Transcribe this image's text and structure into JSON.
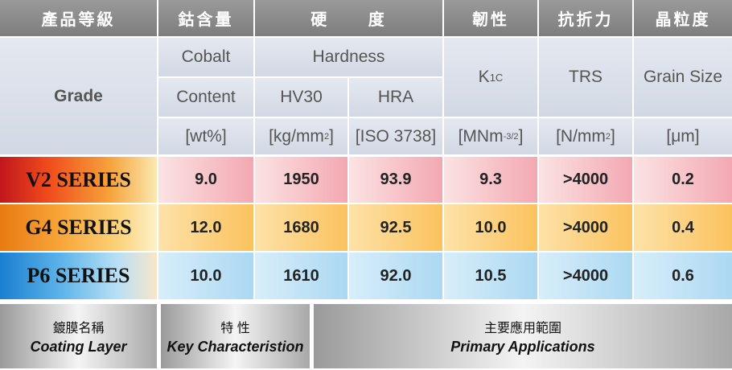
{
  "header": [
    "產品等級",
    "鈷含量",
    "硬 度",
    "韌性",
    "抗折力",
    "晶粒度"
  ],
  "subheader": {
    "grade": "Grade",
    "cobalt": "Cobalt",
    "content": "Content",
    "hardness": "Hardness",
    "hv30": "HV30",
    "hra": "HRA",
    "k1c": {
      "base": "K",
      "small": "1C"
    },
    "trs": "TRS",
    "grain_size": "Grain Size"
  },
  "units": [
    {
      "text": "[wt%]"
    },
    {
      "text": "[kg/mm",
      "sup": "2",
      "close": "]"
    },
    {
      "text": "[ISO 3738]"
    },
    {
      "text": "[MNm",
      "sup": "-3/2",
      "close": "]"
    },
    {
      "text": "[N/mm",
      "sup": "2",
      "close": "]"
    },
    {
      "text": "[μm]"
    }
  ],
  "rows": [
    {
      "series": "V2 SERIES",
      "values": [
        "9.0",
        "1950",
        "93.9",
        "9.3",
        ">4000",
        "0.2"
      ]
    },
    {
      "series": "G4 SERIES",
      "values": [
        "12.0",
        "1680",
        "92.5",
        "10.0",
        ">4000",
        "0.4"
      ]
    },
    {
      "series": "P6 SERIES",
      "values": [
        "10.0",
        "1610",
        "92.0",
        "10.5",
        ">4000",
        "0.6"
      ]
    }
  ],
  "footer": [
    {
      "zh": "鍍膜名稱",
      "en": "Coating Layer"
    },
    {
      "zh": "特 性",
      "en": "Key Characteristion"
    },
    {
      "zh": "主要應用範圍",
      "en": "Primary Applications"
    }
  ]
}
